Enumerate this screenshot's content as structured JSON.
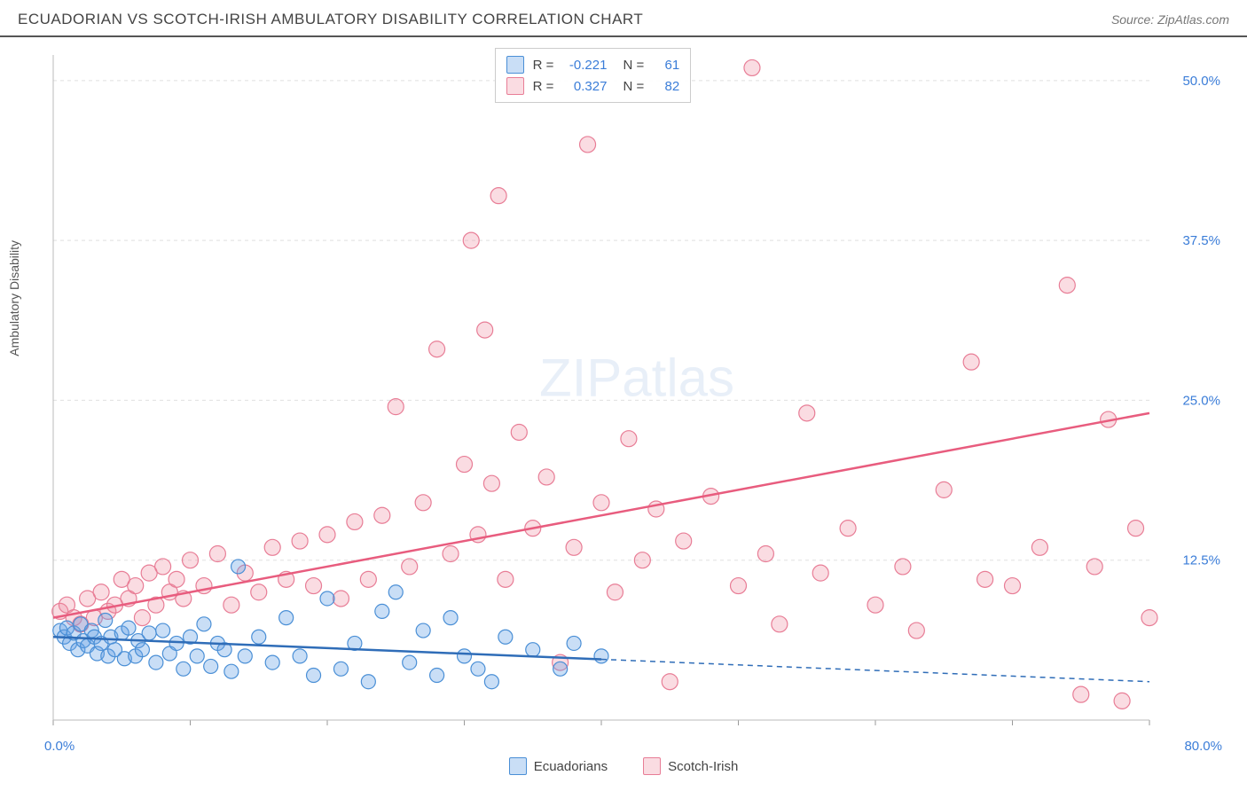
{
  "title": "ECUADORIAN VS SCOTCH-IRISH AMBULATORY DISABILITY CORRELATION CHART",
  "source": "Source: ZipAtlas.com",
  "ylabel": "Ambulatory Disability",
  "watermark_bold": "ZIP",
  "watermark_rest": "atlas",
  "chart": {
    "type": "scatter",
    "background_color": "#ffffff",
    "grid_color": "#e0e0e0",
    "grid_dash": "4,4",
    "xlim": [
      0,
      80
    ],
    "ylim": [
      0,
      52
    ],
    "ytick_positions": [
      12.5,
      25.0,
      37.5,
      50.0
    ],
    "ytick_labels": [
      "12.5%",
      "25.0%",
      "37.5%",
      "50.0%"
    ],
    "xtick_positions": [
      0,
      10,
      20,
      30,
      40,
      50,
      60,
      70,
      80
    ],
    "x_origin_label": "0.0%",
    "x_max_label": "80.0%",
    "axis_label_color": "#3b7dd8",
    "series": [
      {
        "name": "Ecuadorians",
        "fill_color": "rgba(100,160,230,0.35)",
        "stroke_color": "#4a8fd6",
        "marker_radius": 8,
        "trend": {
          "solid_xmax": 40,
          "y_at_x0": 6.5,
          "y_at_xmax": 3.0,
          "color": "#2f6db8",
          "width": 2.5
        },
        "points": [
          [
            0.5,
            7.0
          ],
          [
            0.8,
            6.5
          ],
          [
            1.0,
            7.2
          ],
          [
            1.2,
            6.0
          ],
          [
            1.5,
            6.8
          ],
          [
            1.8,
            5.5
          ],
          [
            2.0,
            7.5
          ],
          [
            2.2,
            6.2
          ],
          [
            2.5,
            5.8
          ],
          [
            2.8,
            7.0
          ],
          [
            3.0,
            6.5
          ],
          [
            3.2,
            5.2
          ],
          [
            3.5,
            6.0
          ],
          [
            3.8,
            7.8
          ],
          [
            4.0,
            5.0
          ],
          [
            4.2,
            6.5
          ],
          [
            4.5,
            5.5
          ],
          [
            5.0,
            6.8
          ],
          [
            5.2,
            4.8
          ],
          [
            5.5,
            7.2
          ],
          [
            6.0,
            5.0
          ],
          [
            6.2,
            6.2
          ],
          [
            6.5,
            5.5
          ],
          [
            7.0,
            6.8
          ],
          [
            7.5,
            4.5
          ],
          [
            8.0,
            7.0
          ],
          [
            8.5,
            5.2
          ],
          [
            9.0,
            6.0
          ],
          [
            9.5,
            4.0
          ],
          [
            10.0,
            6.5
          ],
          [
            10.5,
            5.0
          ],
          [
            11.0,
            7.5
          ],
          [
            11.5,
            4.2
          ],
          [
            12.0,
            6.0
          ],
          [
            12.5,
            5.5
          ],
          [
            13.0,
            3.8
          ],
          [
            13.5,
            12.0
          ],
          [
            14.0,
            5.0
          ],
          [
            15.0,
            6.5
          ],
          [
            16.0,
            4.5
          ],
          [
            17.0,
            8.0
          ],
          [
            18.0,
            5.0
          ],
          [
            19.0,
            3.5
          ],
          [
            20.0,
            9.5
          ],
          [
            21.0,
            4.0
          ],
          [
            22.0,
            6.0
          ],
          [
            23.0,
            3.0
          ],
          [
            24.0,
            8.5
          ],
          [
            25.0,
            10.0
          ],
          [
            26.0,
            4.5
          ],
          [
            27.0,
            7.0
          ],
          [
            28.0,
            3.5
          ],
          [
            29.0,
            8.0
          ],
          [
            30.0,
            5.0
          ],
          [
            31.0,
            4.0
          ],
          [
            32.0,
            3.0
          ],
          [
            33.0,
            6.5
          ],
          [
            35.0,
            5.5
          ],
          [
            37.0,
            4.0
          ],
          [
            38.0,
            6.0
          ],
          [
            40.0,
            5.0
          ]
        ]
      },
      {
        "name": "Scotch-Irish",
        "fill_color": "rgba(240,140,160,0.30)",
        "stroke_color": "#e87d96",
        "marker_radius": 9,
        "trend": {
          "solid_xmax": 80,
          "y_at_x0": 8.0,
          "y_at_xmax": 24.0,
          "color": "#e85c7e",
          "width": 2.5
        },
        "points": [
          [
            0.5,
            8.5
          ],
          [
            1.0,
            9.0
          ],
          [
            1.5,
            8.0
          ],
          [
            2.0,
            7.5
          ],
          [
            2.5,
            9.5
          ],
          [
            3.0,
            8.0
          ],
          [
            3.5,
            10.0
          ],
          [
            4.0,
            8.5
          ],
          [
            4.5,
            9.0
          ],
          [
            5.0,
            11.0
          ],
          [
            5.5,
            9.5
          ],
          [
            6.0,
            10.5
          ],
          [
            6.5,
            8.0
          ],
          [
            7.0,
            11.5
          ],
          [
            7.5,
            9.0
          ],
          [
            8.0,
            12.0
          ],
          [
            8.5,
            10.0
          ],
          [
            9.0,
            11.0
          ],
          [
            9.5,
            9.5
          ],
          [
            10.0,
            12.5
          ],
          [
            11.0,
            10.5
          ],
          [
            12.0,
            13.0
          ],
          [
            13.0,
            9.0
          ],
          [
            14.0,
            11.5
          ],
          [
            15.0,
            10.0
          ],
          [
            16.0,
            13.5
          ],
          [
            17.0,
            11.0
          ],
          [
            18.0,
            14.0
          ],
          [
            19.0,
            10.5
          ],
          [
            20.0,
            14.5
          ],
          [
            21.0,
            9.5
          ],
          [
            22.0,
            15.5
          ],
          [
            23.0,
            11.0
          ],
          [
            24.0,
            16.0
          ],
          [
            25.0,
            24.5
          ],
          [
            26.0,
            12.0
          ],
          [
            27.0,
            17.0
          ],
          [
            28.0,
            29.0
          ],
          [
            29.0,
            13.0
          ],
          [
            30.0,
            20.0
          ],
          [
            30.5,
            37.5
          ],
          [
            31.0,
            14.5
          ],
          [
            31.5,
            30.5
          ],
          [
            32.0,
            18.5
          ],
          [
            32.5,
            41.0
          ],
          [
            33.0,
            11.0
          ],
          [
            34.0,
            22.5
          ],
          [
            35.0,
            15.0
          ],
          [
            36.0,
            19.0
          ],
          [
            37.0,
            4.5
          ],
          [
            38.0,
            13.5
          ],
          [
            39.0,
            45.0
          ],
          [
            40.0,
            17.0
          ],
          [
            41.0,
            10.0
          ],
          [
            42.0,
            22.0
          ],
          [
            43.0,
            12.5
          ],
          [
            44.0,
            16.5
          ],
          [
            45.0,
            3.0
          ],
          [
            46.0,
            14.0
          ],
          [
            48.0,
            17.5
          ],
          [
            50.0,
            10.5
          ],
          [
            51.0,
            51.0
          ],
          [
            52.0,
            13.0
          ],
          [
            53.0,
            7.5
          ],
          [
            55.0,
            24.0
          ],
          [
            56.0,
            11.5
          ],
          [
            58.0,
            15.0
          ],
          [
            60.0,
            9.0
          ],
          [
            62.0,
            12.0
          ],
          [
            63.0,
            7.0
          ],
          [
            65.0,
            18.0
          ],
          [
            67.0,
            28.0
          ],
          [
            68.0,
            11.0
          ],
          [
            70.0,
            10.5
          ],
          [
            72.0,
            13.5
          ],
          [
            74.0,
            34.0
          ],
          [
            75.0,
            2.0
          ],
          [
            76.0,
            12.0
          ],
          [
            78.0,
            1.5
          ],
          [
            79.0,
            15.0
          ],
          [
            77.0,
            23.5
          ],
          [
            80.0,
            8.0
          ]
        ]
      }
    ]
  },
  "stats_box": {
    "rows": [
      {
        "swatch_fill": "rgba(100,160,230,0.35)",
        "swatch_stroke": "#4a8fd6",
        "r_label": "R =",
        "r_val": "-0.221",
        "n_label": "N =",
        "n_val": "61"
      },
      {
        "swatch_fill": "rgba(240,140,160,0.30)",
        "swatch_stroke": "#e87d96",
        "r_label": "R =",
        "r_val": "0.327",
        "n_label": "N =",
        "n_val": "82"
      }
    ]
  },
  "legend": {
    "items": [
      {
        "label": "Ecuadorians",
        "fill": "rgba(100,160,230,0.35)",
        "stroke": "#4a8fd6"
      },
      {
        "label": "Scotch-Irish",
        "fill": "rgba(240,140,160,0.30)",
        "stroke": "#e87d96"
      }
    ]
  }
}
